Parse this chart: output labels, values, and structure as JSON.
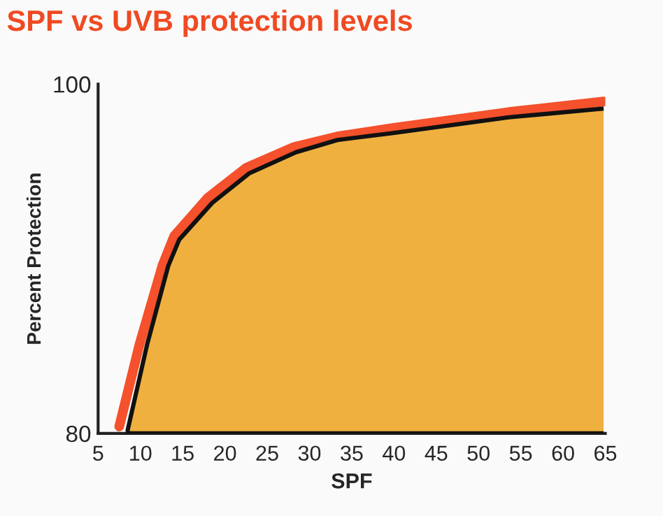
{
  "chart_data": {
    "type": "area",
    "title": "SPF vs UVB protection levels",
    "xlabel": "SPF",
    "ylabel": "Percent Protection",
    "series": [
      {
        "type": "line",
        "color": "#f4512c",
        "x": [
          7.5,
          9.9,
          12.6,
          14.0,
          18.0,
          22.5,
          28.2,
          33.3,
          40,
          53.6,
          64.8
        ],
        "values": [
          80.4,
          85.1,
          89.6,
          91.3,
          93.5,
          95.2,
          96.4,
          97.0,
          97.5,
          98.4,
          99.0
        ]
      },
      {
        "color": "#f0b040",
        "x": [
          8.5,
          10.8,
          13.3,
          14.6,
          18.5,
          22.9,
          28.4,
          33.3,
          39.9,
          53.6,
          64.8
        ],
        "values": [
          80.2,
          85.1,
          89.6,
          91.1,
          93.2,
          94.9,
          96.1,
          96.8,
          97.2,
          98.1,
          98.6
        ]
      }
    ],
    "xlim": [
      5,
      65
    ],
    "xticks": [
      5,
      10,
      15,
      20,
      25,
      30,
      35,
      40,
      45,
      50,
      55,
      60,
      65
    ],
    "ylim": [
      80,
      100
    ],
    "yticks": [
      80,
      100
    ],
    "grid": false,
    "legend": false
  }
}
